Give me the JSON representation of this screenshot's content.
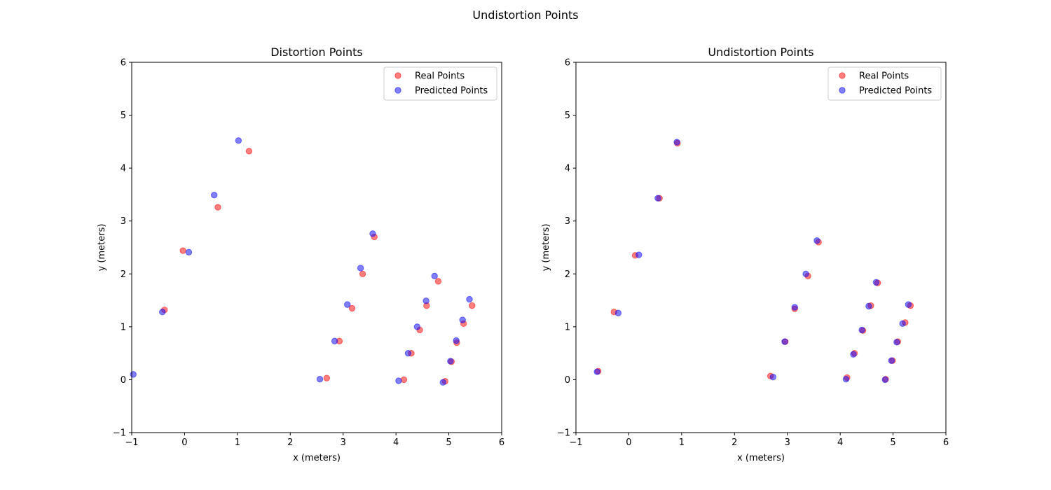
{
  "figure": {
    "suptitle": "Undistortion Points"
  },
  "chart_data": [
    {
      "type": "scatter",
      "title": "Distortion Points",
      "xlabel": "x (meters)",
      "ylabel": "y (meters)",
      "xlim": [
        -1,
        6
      ],
      "ylim": [
        -1,
        6
      ],
      "xticks": [
        "−1",
        "0",
        "1",
        "2",
        "3",
        "4",
        "5",
        "6"
      ],
      "yticks": [
        "−1",
        "0",
        "1",
        "2",
        "3",
        "4",
        "5",
        "6"
      ],
      "grid": false,
      "legend_position": "top-right",
      "series": [
        {
          "name": "Real Points",
          "color": "#ff0000",
          "points": [
            [
              -0.38,
              1.32
            ],
            [
              -0.03,
              2.44
            ],
            [
              0.63,
              3.26
            ],
            [
              1.22,
              4.32
            ],
            [
              2.69,
              0.03
            ],
            [
              2.93,
              0.73
            ],
            [
              3.17,
              1.35
            ],
            [
              3.37,
              2.0
            ],
            [
              3.59,
              2.7
            ],
            [
              4.15,
              0.0
            ],
            [
              4.29,
              0.5
            ],
            [
              4.45,
              0.94
            ],
            [
              4.58,
              1.4
            ],
            [
              4.8,
              1.86
            ],
            [
              4.93,
              -0.03
            ],
            [
              5.05,
              0.34
            ],
            [
              5.15,
              0.7
            ],
            [
              5.28,
              1.06
            ],
            [
              5.44,
              1.4
            ]
          ]
        },
        {
          "name": "Predicted Points",
          "color": "#0000ff",
          "points": [
            [
              -0.97,
              0.1
            ],
            [
              -0.42,
              1.28
            ],
            [
              0.08,
              2.41
            ],
            [
              0.56,
              3.49
            ],
            [
              1.02,
              4.52
            ],
            [
              2.56,
              0.01
            ],
            [
              2.84,
              0.73
            ],
            [
              3.08,
              1.42
            ],
            [
              3.33,
              2.11
            ],
            [
              3.56,
              2.76
            ],
            [
              4.05,
              -0.02
            ],
            [
              4.23,
              0.5
            ],
            [
              4.4,
              1.0
            ],
            [
              4.57,
              1.49
            ],
            [
              4.73,
              1.96
            ],
            [
              4.89,
              -0.05
            ],
            [
              5.03,
              0.35
            ],
            [
              5.14,
              0.74
            ],
            [
              5.26,
              1.13
            ],
            [
              5.39,
              1.52
            ]
          ]
        }
      ]
    },
    {
      "type": "scatter",
      "title": "Undistortion Points",
      "xlabel": "x (meters)",
      "ylabel": "y (meters)",
      "xlim": [
        -1,
        6
      ],
      "ylim": [
        -1,
        6
      ],
      "xticks": [
        "−1",
        "0",
        "1",
        "2",
        "3",
        "4",
        "5",
        "6"
      ],
      "yticks": [
        "−1",
        "0",
        "1",
        "2",
        "3",
        "4",
        "5",
        "6"
      ],
      "grid": false,
      "legend_position": "top-right",
      "series": [
        {
          "name": "Real Points",
          "color": "#ff0000",
          "points": [
            [
              -0.58,
              0.16
            ],
            [
              -0.28,
              1.28
            ],
            [
              0.12,
              2.35
            ],
            [
              0.58,
              3.43
            ],
            [
              0.92,
              4.47
            ],
            [
              2.68,
              0.07
            ],
            [
              2.96,
              0.72
            ],
            [
              3.14,
              1.34
            ],
            [
              3.39,
              1.96
            ],
            [
              3.59,
              2.6
            ],
            [
              4.13,
              0.04
            ],
            [
              4.27,
              0.5
            ],
            [
              4.43,
              0.93
            ],
            [
              4.58,
              1.4
            ],
            [
              4.71,
              1.83
            ],
            [
              4.86,
              0.01
            ],
            [
              4.99,
              0.36
            ],
            [
              5.09,
              0.72
            ],
            [
              5.23,
              1.08
            ],
            [
              5.33,
              1.4
            ]
          ]
        },
        {
          "name": "Predicted Points",
          "color": "#0000ff",
          "points": [
            [
              -0.6,
              0.15
            ],
            [
              -0.2,
              1.26
            ],
            [
              0.19,
              2.36
            ],
            [
              0.55,
              3.43
            ],
            [
              0.91,
              4.49
            ],
            [
              2.73,
              0.05
            ],
            [
              2.95,
              0.72
            ],
            [
              3.14,
              1.37
            ],
            [
              3.35,
              2.0
            ],
            [
              3.56,
              2.63
            ],
            [
              4.11,
              0.01
            ],
            [
              4.25,
              0.48
            ],
            [
              4.41,
              0.94
            ],
            [
              4.54,
              1.39
            ],
            [
              4.68,
              1.84
            ],
            [
              4.85,
              0.0
            ],
            [
              4.97,
              0.36
            ],
            [
              5.07,
              0.71
            ],
            [
              5.18,
              1.06
            ],
            [
              5.29,
              1.42
            ]
          ]
        }
      ]
    }
  ]
}
